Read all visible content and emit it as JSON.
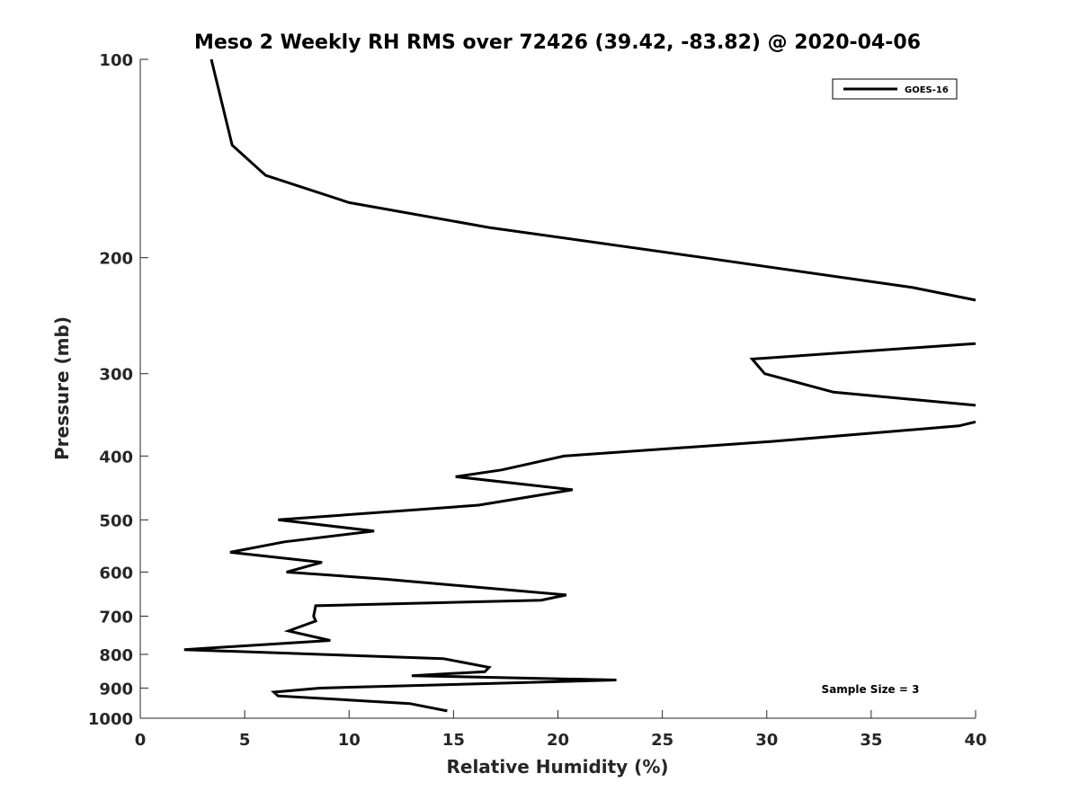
{
  "chart_data": {
    "type": "line",
    "title": "Meso 2 Weekly RH RMS over 72426 (39.42, -83.82) @ 2020-04-06",
    "xlabel": "Relative Humidity (%)",
    "ylabel": "Pressure (mb)",
    "xlim": [
      0,
      40
    ],
    "ylim": [
      100,
      1000
    ],
    "y_scale": "log",
    "y_reversed": true,
    "grid": false,
    "legend_position": "top-right",
    "x_ticks": [
      0,
      5,
      10,
      15,
      20,
      25,
      30,
      35,
      40
    ],
    "x_tick_labels": [
      "0",
      "5",
      "10",
      "15",
      "20",
      "25",
      "30",
      "35",
      "40"
    ],
    "y_ticks": [
      100,
      200,
      300,
      400,
      500,
      600,
      700,
      800,
      900,
      1000
    ],
    "y_tick_labels": [
      "100",
      "200",
      "300",
      "400",
      "500",
      "600",
      "700",
      "800",
      "900",
      "1000"
    ],
    "annotation": "Sample Size = 3",
    "colors": {
      "series": "#000000",
      "axis": "#262626"
    },
    "series": [
      {
        "name": "GOES-16",
        "segments": [
          [
            [
              14.7,
              975
            ],
            [
              12.9,
              950
            ],
            [
              6.6,
              925
            ],
            [
              6.4,
              913
            ],
            [
              8.6,
              900
            ],
            [
              22.8,
              875
            ],
            [
              13.0,
              862
            ],
            [
              16.5,
              850
            ],
            [
              16.7,
              837
            ],
            [
              14.5,
              812
            ],
            [
              2.1,
              787
            ],
            [
              9.1,
              762
            ],
            [
              7.1,
              737
            ],
            [
              8.4,
              712
            ],
            [
              8.3,
              700
            ],
            [
              8.4,
              675
            ],
            [
              19.2,
              662
            ],
            [
              20.4,
              650
            ],
            [
              11.7,
              615
            ],
            [
              7.0,
              600
            ],
            [
              8.7,
              580
            ],
            [
              4.3,
              560
            ],
            [
              6.9,
              540
            ],
            [
              11.2,
              520
            ],
            [
              6.6,
              500
            ],
            [
              16.2,
              475
            ],
            [
              20.7,
              450
            ],
            [
              15.1,
              430
            ],
            [
              17.3,
              420
            ],
            [
              20.3,
              400
            ],
            [
              30.3,
              380
            ],
            [
              39.2,
              360
            ],
            [
              40.0,
              355
            ]
          ],
          [
            [
              40.0,
              335
            ],
            [
              33.2,
              320
            ],
            [
              29.9,
              300
            ],
            [
              29.3,
              285
            ],
            [
              40.0,
              270
            ]
          ],
          [
            [
              40.0,
              232
            ],
            [
              37.0,
              222
            ],
            [
              27.0,
              200
            ],
            [
              16.7,
              180
            ],
            [
              10.0,
              165
            ],
            [
              6.0,
              150
            ],
            [
              4.4,
              135
            ],
            [
              3.4,
              100
            ]
          ]
        ]
      }
    ]
  }
}
